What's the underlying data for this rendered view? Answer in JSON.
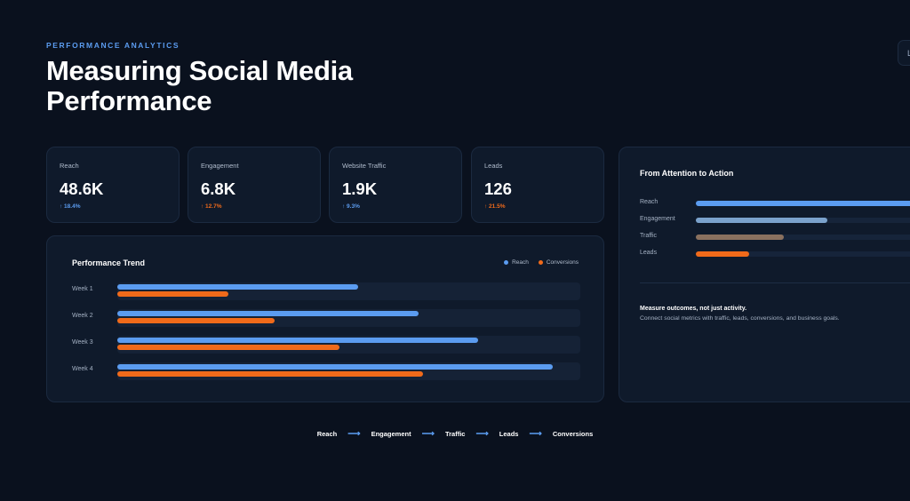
{
  "header": {
    "eyebrow": "PERFORMANCE ANALYTICS",
    "title": "Measuring Social Media Performance",
    "corner_button": "L"
  },
  "stats": [
    {
      "label": "Reach",
      "value": "48.6K",
      "change": "↑ 18.4%",
      "change_color": "#5b9cf0"
    },
    {
      "label": "Engagement",
      "value": "6.8K",
      "change": "↑ 12.7%",
      "change_color": "#f06a1a"
    },
    {
      "label": "Website Traffic",
      "value": "1.9K",
      "change": "↑ 9.3%",
      "change_color": "#5b9cf0"
    },
    {
      "label": "Leads",
      "value": "126",
      "change": "↑ 21.5%",
      "change_color": "#f06a1a"
    }
  ],
  "trend": {
    "title": "Performance Trend",
    "legend": [
      {
        "name": "Reach",
        "color": "#5b9cf0"
      },
      {
        "name": "Conversions",
        "color": "#f06a1a"
      }
    ]
  },
  "chart_data": {
    "type": "bar",
    "categories": [
      "Week 1",
      "Week 2",
      "Week 3",
      "Week 4"
    ],
    "series": [
      {
        "name": "Reach",
        "values": [
          0.52,
          0.65,
          0.78,
          0.94
        ],
        "color": "#5b9cf0"
      },
      {
        "name": "Conversions",
        "values": [
          0.24,
          0.34,
          0.48,
          0.66
        ],
        "color": "#f06a1a"
      }
    ],
    "ylim": [
      0,
      1
    ]
  },
  "funnel": {
    "title": "From Attention to Action",
    "rows": [
      {
        "label": "Reach",
        "level": 0.95,
        "color": "#5b9cf0"
      },
      {
        "label": "Engagement",
        "level": 0.57,
        "color": "#7ba2cc"
      },
      {
        "label": "Traffic",
        "level": 0.38,
        "color": "#8a715f"
      },
      {
        "label": "Leads",
        "level": 0.23,
        "color": "#f06a1a"
      }
    ],
    "note_head": "Measure outcomes, not just activity.",
    "note_body": "Connect social metrics with traffic, leads, conversions, and business goals."
  },
  "flow": [
    "Reach",
    "Engagement",
    "Traffic",
    "Leads",
    "Conversions"
  ],
  "flow_arrow": "⟶"
}
